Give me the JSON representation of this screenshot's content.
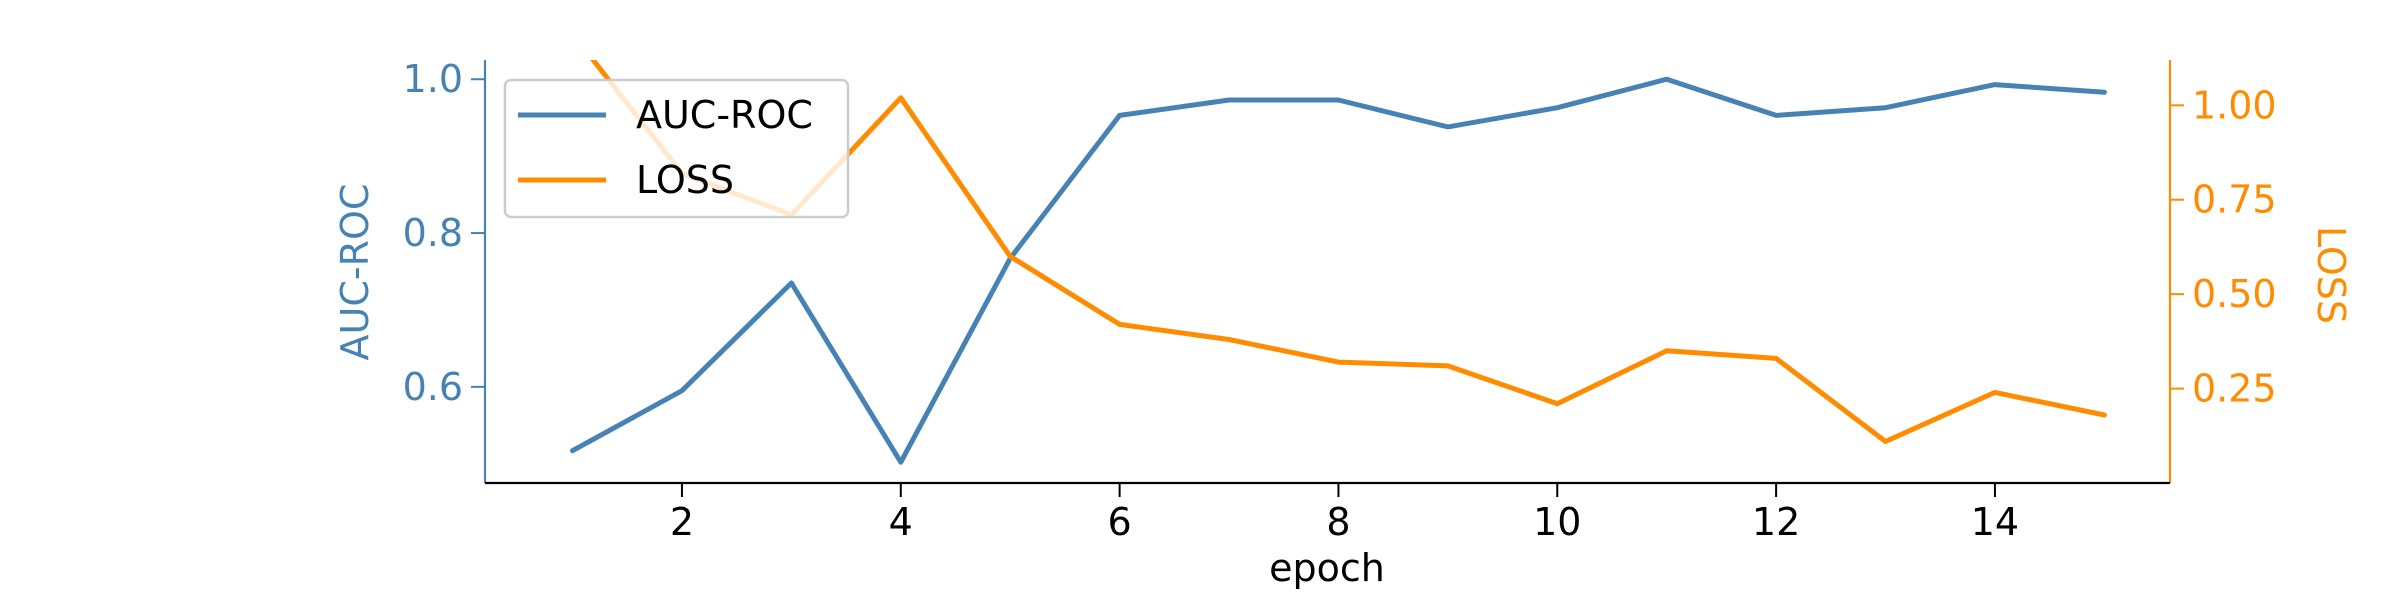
{
  "chart_data": {
    "type": "line",
    "title": "",
    "xlabel": "epoch",
    "ylabel_left": "AUC-ROC",
    "ylabel_right": "LOSS",
    "xlim": [
      0.2,
      15.6
    ],
    "ylim_left": [
      0.475,
      1.025
    ],
    "ylim_right": [
      0.0,
      1.12
    ],
    "x_ticks": [
      2,
      4,
      6,
      8,
      10,
      12,
      14
    ],
    "y_ticks_left": [
      0.6,
      0.8,
      1.0
    ],
    "y_ticks_right": [
      0.25,
      0.5,
      0.75,
      1.0
    ],
    "x_tick_labels": [
      "2",
      "4",
      "6",
      "8",
      "10",
      "12",
      "14"
    ],
    "y_tick_labels_left": [
      "0.6",
      "0.8",
      "1.0"
    ],
    "y_tick_labels_right": [
      "0.25",
      "0.50",
      "0.75",
      "1.00"
    ],
    "x": [
      1,
      2,
      3,
      4,
      5,
      6,
      7,
      8,
      9,
      10,
      11,
      12,
      13,
      14,
      15
    ],
    "series": [
      {
        "name": "AUC-ROC",
        "axis": "left",
        "color": "#4682b4",
        "values": [
          0.517,
          0.595,
          0.735,
          0.502,
          0.767,
          0.953,
          0.973,
          0.973,
          0.938,
          0.963,
          1.0,
          0.953,
          0.963,
          0.993,
          0.983
        ]
      },
      {
        "name": "LOSS",
        "axis": "right",
        "color": "#ff8c00",
        "values": [
          1.19,
          0.82,
          0.71,
          1.02,
          0.6,
          0.42,
          0.38,
          0.32,
          0.31,
          0.21,
          0.35,
          0.33,
          0.11,
          0.24,
          0.18
        ]
      }
    ],
    "legend": {
      "placement": "upper-left",
      "entries": [
        "AUC-ROC",
        "LOSS"
      ]
    },
    "grid": false
  }
}
